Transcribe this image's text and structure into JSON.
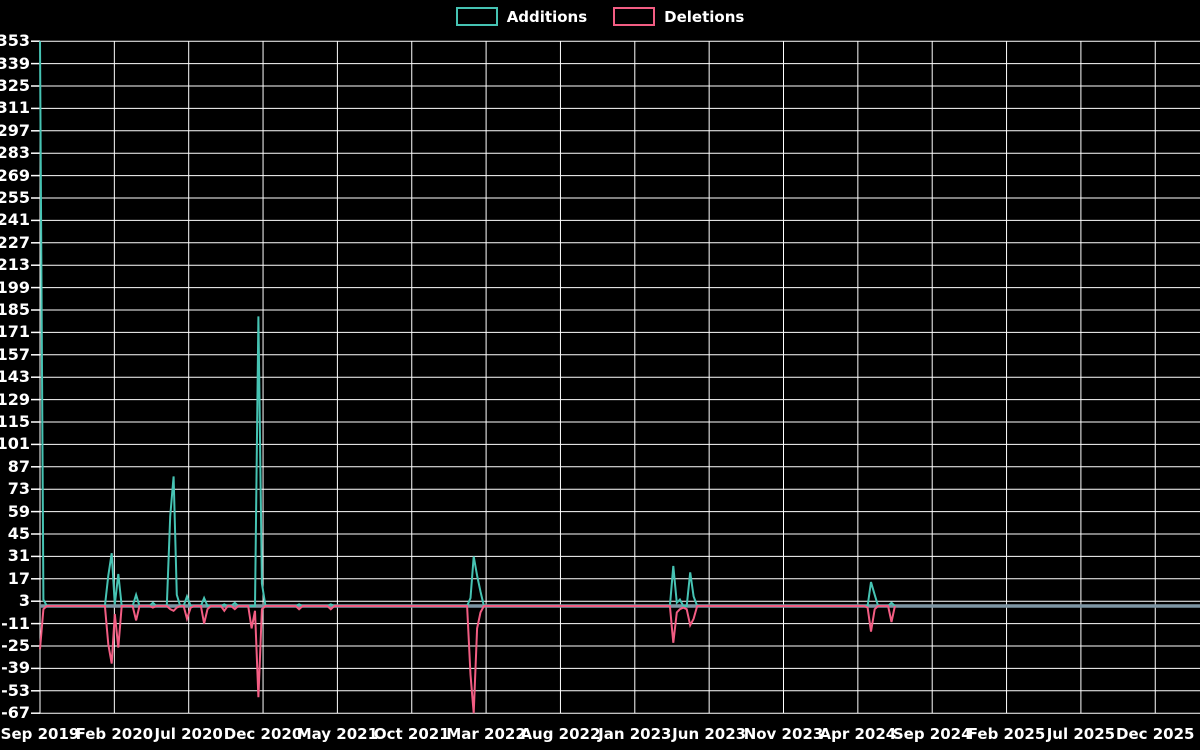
{
  "colors": {
    "background": "#000000",
    "grid": "#ffffff",
    "zero_line": "#7e96a4",
    "additions": "#46c3b3",
    "deletions": "#f25d83",
    "text": "#ffffff"
  },
  "legend": {
    "items": [
      {
        "label": "Additions",
        "color": "#46c3b3"
      },
      {
        "label": "Deletions",
        "color": "#f25d83"
      }
    ]
  },
  "chart_data": {
    "type": "line",
    "title": "",
    "xlabel": "",
    "ylabel": "",
    "grid": true,
    "legend_position": "top-center",
    "ylim": [
      -67,
      353
    ],
    "y_tick_step": 14,
    "y_ticks": [
      353,
      339,
      325,
      311,
      297,
      283,
      269,
      255,
      241,
      227,
      213,
      199,
      185,
      171,
      157,
      143,
      129,
      115,
      101,
      87,
      73,
      59,
      45,
      31,
      17,
      3,
      -11,
      -25,
      -39,
      -53,
      -67
    ],
    "x_ticks": [
      "Sep 2019",
      "Feb 2020",
      "Jul 2020",
      "Dec 2020",
      "May 2021",
      "Oct 2021",
      "Mar 2022",
      "Aug 2022",
      "Jan 2023",
      "Jun 2023",
      "Nov 2023",
      "Apr 2024",
      "Sep 2024",
      "Feb 2025",
      "Jul 2025",
      "Dec 2025"
    ],
    "x_tick_interval_months": 5,
    "series": [
      {
        "name": "Additions",
        "color": "#46c3b3",
        "value_key": "additions"
      },
      {
        "name": "Deletions",
        "color": "#f25d83",
        "value_key": "deletions"
      }
    ],
    "weeks": [
      [
        "2019-09-01",
        353,
        -27
      ],
      [
        "2019-09-08",
        4,
        -2
      ],
      [
        "2019-09-15",
        0,
        0
      ],
      [
        "2020-01-12",
        0,
        0
      ],
      [
        "2020-01-19",
        19,
        -24
      ],
      [
        "2020-01-26",
        33,
        -36
      ],
      [
        "2020-02-02",
        1,
        -5
      ],
      [
        "2020-02-09",
        20,
        -26
      ],
      [
        "2020-02-16",
        0,
        0
      ],
      [
        "2020-03-08",
        0,
        0
      ],
      [
        "2020-03-15",
        7,
        -9
      ],
      [
        "2020-03-22",
        0,
        0
      ],
      [
        "2020-04-12",
        0,
        0
      ],
      [
        "2020-04-19",
        2,
        -1
      ],
      [
        "2020-04-26",
        0,
        0
      ],
      [
        "2020-05-17",
        0,
        0
      ],
      [
        "2020-05-24",
        56,
        -2
      ],
      [
        "2020-05-31",
        81,
        -3
      ],
      [
        "2020-06-07",
        7,
        -1
      ],
      [
        "2020-06-14",
        0,
        0
      ],
      [
        "2020-06-21",
        0,
        0
      ],
      [
        "2020-06-28",
        6,
        -8
      ],
      [
        "2020-07-05",
        0,
        -1
      ],
      [
        "2020-07-12",
        0,
        0
      ],
      [
        "2020-07-26",
        0,
        0
      ],
      [
        "2020-08-02",
        5,
        -11
      ],
      [
        "2020-08-09",
        0,
        -2
      ],
      [
        "2020-08-16",
        0,
        0
      ],
      [
        "2020-09-06",
        0,
        0
      ],
      [
        "2020-09-13",
        1,
        -3
      ],
      [
        "2020-09-20",
        0,
        0
      ],
      [
        "2020-09-27",
        0,
        0
      ],
      [
        "2020-10-04",
        2,
        -2
      ],
      [
        "2020-10-11",
        0,
        0
      ],
      [
        "2020-11-01",
        0,
        0
      ],
      [
        "2020-11-08",
        0,
        -14
      ],
      [
        "2020-11-15",
        0,
        -3
      ],
      [
        "2020-11-22",
        181,
        -57
      ],
      [
        "2020-11-29",
        14,
        -2
      ],
      [
        "2020-12-06",
        0,
        0
      ],
      [
        "2021-02-07",
        0,
        0
      ],
      [
        "2021-02-14",
        1,
        -2
      ],
      [
        "2021-02-21",
        0,
        0
      ],
      [
        "2021-04-11",
        0,
        0
      ],
      [
        "2021-04-18",
        1,
        -2
      ],
      [
        "2021-04-25",
        0,
        0
      ],
      [
        "2022-01-23",
        0,
        0
      ],
      [
        "2022-01-30",
        5,
        -43
      ],
      [
        "2022-02-06",
        31,
        -67
      ],
      [
        "2022-02-13",
        19,
        -14
      ],
      [
        "2022-02-20",
        9,
        -4
      ],
      [
        "2022-02-27",
        0,
        0
      ],
      [
        "2023-03-12",
        0,
        0
      ],
      [
        "2023-03-19",
        25,
        -23
      ],
      [
        "2023-03-26",
        2,
        -4
      ],
      [
        "2023-04-02",
        4,
        -2
      ],
      [
        "2023-04-09",
        0,
        -1
      ],
      [
        "2023-04-16",
        0,
        -2
      ],
      [
        "2023-04-23",
        21,
        -12
      ],
      [
        "2023-04-30",
        6,
        -8
      ],
      [
        "2023-05-07",
        0,
        0
      ],
      [
        "2024-04-14",
        0,
        0
      ],
      [
        "2024-04-21",
        0,
        -1
      ],
      [
        "2024-04-28",
        15,
        -16
      ],
      [
        "2024-05-05",
        7,
        -2
      ],
      [
        "2024-05-12",
        0,
        0
      ],
      [
        "2024-06-02",
        0,
        0
      ],
      [
        "2024-06-09",
        2,
        -10
      ],
      [
        "2024-06-16",
        0,
        0
      ]
    ]
  }
}
